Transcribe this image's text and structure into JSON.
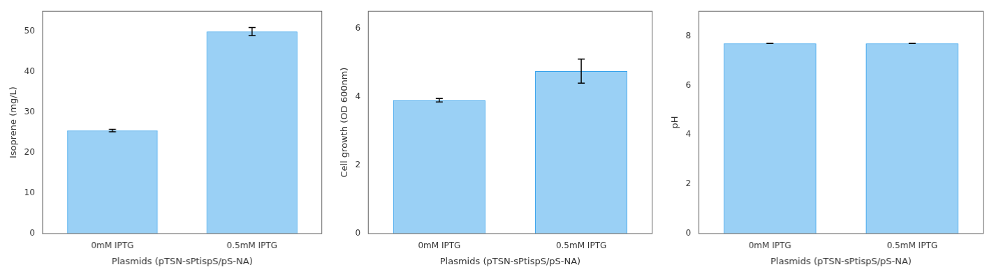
{
  "chart_data": [
    {
      "type": "bar",
      "ylabel": "Isoprene (mg/L)",
      "xlabel": "Plasmids (pTSN-sPtispS/pS-NA)",
      "categories": [
        "0mM IPTG",
        "0.5mM IPTG"
      ],
      "values": [
        25.5,
        50.0
      ],
      "errors": [
        0.3,
        1.0
      ],
      "ylim": [
        0,
        55
      ],
      "yticks": [
        0,
        10,
        20,
        30,
        40,
        50
      ],
      "grid": false
    },
    {
      "type": "bar",
      "ylabel": "Cell growth (OD 600nm)",
      "xlabel": "Plasmids (pTSN-sPtispS/pS-NA)",
      "categories": [
        "0mM IPTG",
        "0.5mM IPTG"
      ],
      "values": [
        3.9,
        4.75
      ],
      "errors": [
        0.05,
        0.35
      ],
      "ylim": [
        0,
        6.5
      ],
      "yticks": [
        0,
        2,
        4,
        6
      ],
      "grid": false
    },
    {
      "type": "bar",
      "ylabel": "pH",
      "xlabel": "Plasmids (pTSN-sPtispS/pS-NA)",
      "categories": [
        "0mM IPTG",
        "0.5mM IPTG"
      ],
      "values": [
        7.7,
        7.7
      ],
      "errors": [
        0,
        0
      ],
      "ylim": [
        0,
        9.0
      ],
      "yticks": [
        0,
        2,
        4,
        6,
        8
      ],
      "grid": false
    }
  ]
}
